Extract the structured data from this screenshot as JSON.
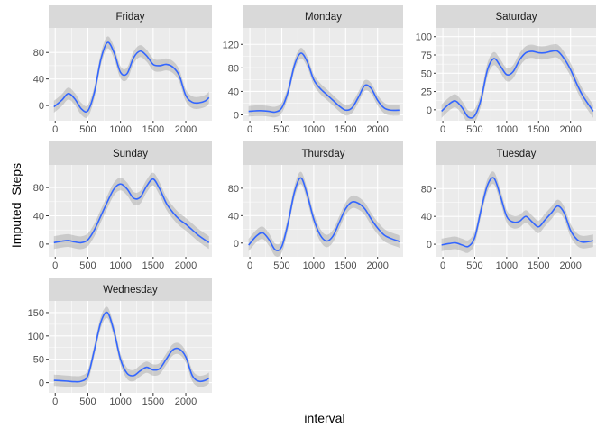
{
  "chart_data": {
    "type": "line",
    "xlabel": "interval",
    "ylabel": "Imputed_Steps",
    "colors": {
      "line": "#3366ff",
      "ribbon": "#999999",
      "panel_bg": "#ebebeb",
      "strip_bg": "#d9d9d9",
      "grid": "#ffffff"
    },
    "grid": true,
    "panels": [
      {
        "name": "Friday",
        "xticks": [
          0,
          500,
          1000,
          1500,
          2000
        ],
        "xlim": [
          -100,
          2400
        ],
        "yticks": [
          0,
          40,
          80
        ],
        "ylim": [
          -23,
          117
        ],
        "x": [
          -20,
          100,
          200,
          300,
          400,
          500,
          600,
          700,
          800,
          900,
          1000,
          1100,
          1200,
          1300,
          1400,
          1500,
          1600,
          1700,
          1800,
          1900,
          2000,
          2100,
          2200,
          2300,
          2355
        ],
        "y": [
          -2,
          8,
          18,
          10,
          -5,
          -8,
          20,
          70,
          95,
          80,
          50,
          48,
          72,
          82,
          75,
          62,
          60,
          62,
          58,
          45,
          15,
          5,
          4,
          7,
          12
        ],
        "ci": 9
      },
      {
        "name": "Monday",
        "xticks": [
          0,
          500,
          1000,
          1500,
          2000
        ],
        "xlim": [
          -100,
          2400
        ],
        "yticks": [
          0,
          40,
          80,
          120
        ],
        "ylim": [
          -10,
          148
        ],
        "x": [
          -20,
          100,
          200,
          300,
          400,
          500,
          600,
          700,
          800,
          900,
          1000,
          1100,
          1200,
          1300,
          1400,
          1500,
          1600,
          1700,
          1800,
          1900,
          2000,
          2100,
          2200,
          2355
        ],
        "y": [
          6,
          7,
          7,
          6,
          5,
          12,
          40,
          85,
          105,
          90,
          60,
          45,
          35,
          25,
          15,
          8,
          12,
          30,
          50,
          45,
          25,
          12,
          8,
          8
        ],
        "ci": 9
      },
      {
        "name": "Saturday",
        "xticks": [
          0,
          500,
          1000,
          1500,
          2000
        ],
        "xlim": [
          -100,
          2400
        ],
        "yticks": [
          0,
          25,
          50,
          75,
          100
        ],
        "ylim": [
          -15,
          112
        ],
        "x": [
          -20,
          100,
          200,
          300,
          400,
          500,
          600,
          700,
          800,
          900,
          1000,
          1100,
          1200,
          1300,
          1400,
          1500,
          1600,
          1700,
          1800,
          1900,
          2000,
          2100,
          2200,
          2355
        ],
        "y": [
          -2,
          8,
          12,
          3,
          -10,
          -8,
          15,
          55,
          70,
          60,
          48,
          52,
          68,
          78,
          80,
          78,
          78,
          80,
          80,
          70,
          55,
          35,
          18,
          -2
        ],
        "ci": 9
      },
      {
        "name": "Sunday",
        "xticks": [
          0,
          500,
          1000,
          1500,
          2000
        ],
        "xlim": [
          -100,
          2400
        ],
        "yticks": [
          0,
          40,
          80
        ],
        "ylim": [
          -18,
          112
        ],
        "x": [
          -20,
          100,
          200,
          300,
          400,
          500,
          600,
          700,
          800,
          900,
          1000,
          1100,
          1200,
          1300,
          1400,
          1500,
          1600,
          1700,
          1800,
          1900,
          2000,
          2100,
          2200,
          2355
        ],
        "y": [
          2,
          4,
          5,
          3,
          2,
          6,
          20,
          40,
          60,
          78,
          85,
          78,
          65,
          66,
          82,
          92,
          78,
          58,
          45,
          35,
          28,
          20,
          12,
          2
        ],
        "ci": 9
      },
      {
        "name": "Thursday",
        "xticks": [
          0,
          500,
          1000,
          1500,
          2000
        ],
        "xlim": [
          -100,
          2400
        ],
        "yticks": [
          0,
          40,
          80
        ],
        "ylim": [
          -20,
          114
        ],
        "x": [
          -20,
          100,
          200,
          300,
          400,
          500,
          600,
          700,
          800,
          900,
          1000,
          1100,
          1200,
          1300,
          1400,
          1500,
          1600,
          1700,
          1800,
          1900,
          2000,
          2100,
          2200,
          2355
        ],
        "y": [
          -3,
          10,
          15,
          5,
          -10,
          -5,
          30,
          75,
          95,
          70,
          35,
          12,
          3,
          10,
          30,
          50,
          60,
          58,
          50,
          35,
          22,
          12,
          7,
          2
        ],
        "ci": 9
      },
      {
        "name": "Tuesday",
        "xticks": [
          0,
          500,
          1000,
          1500,
          2000
        ],
        "xlim": [
          -100,
          2400
        ],
        "yticks": [
          0,
          40,
          80
        ],
        "ylim": [
          -18,
          114
        ],
        "x": [
          -20,
          100,
          200,
          300,
          400,
          500,
          600,
          700,
          800,
          900,
          1000,
          1100,
          1200,
          1300,
          1400,
          1500,
          1600,
          1700,
          1800,
          1900,
          2000,
          2100,
          2200,
          2355
        ],
        "y": [
          -1,
          1,
          2,
          -1,
          -3,
          10,
          50,
          85,
          95,
          70,
          40,
          32,
          33,
          40,
          32,
          25,
          35,
          45,
          55,
          45,
          20,
          7,
          3,
          5
        ],
        "ci": 9
      },
      {
        "name": "Wednesday",
        "xticks": [
          0,
          500,
          1000,
          1500,
          2000
        ],
        "xlim": [
          -100,
          2400
        ],
        "yticks": [
          0,
          50,
          100,
          150
        ],
        "ylim": [
          -22,
          175
        ],
        "x": [
          -20,
          100,
          200,
          300,
          400,
          500,
          600,
          700,
          800,
          900,
          1000,
          1100,
          1200,
          1300,
          1400,
          1500,
          1600,
          1700,
          1800,
          1900,
          2000,
          2100,
          2200,
          2300,
          2355
        ],
        "y": [
          5,
          4,
          3,
          2,
          3,
          15,
          70,
          130,
          150,
          110,
          50,
          20,
          15,
          25,
          33,
          27,
          30,
          50,
          70,
          72,
          55,
          15,
          3,
          5,
          10
        ],
        "ci": 12
      }
    ]
  }
}
